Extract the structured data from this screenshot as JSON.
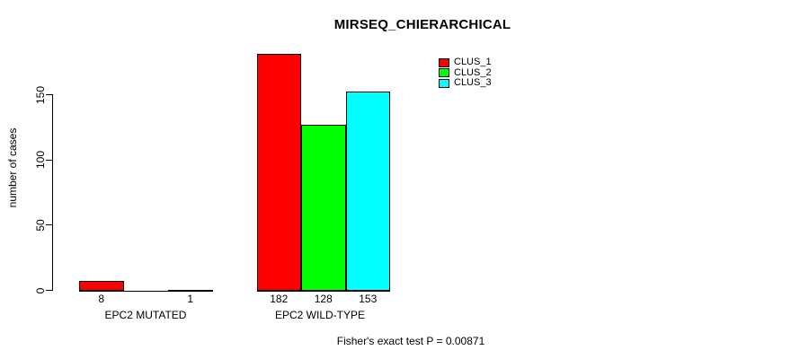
{
  "chart_data": {
    "type": "bar",
    "title": "MIRSEQ_CHIERARCHICAL",
    "xlabel": "",
    "ylabel": "number of cases",
    "categories": [
      "EPC2 MUTATED",
      "EPC2 WILD-TYPE"
    ],
    "series": [
      {
        "name": "CLUS_1",
        "color": "#ff0000",
        "values": [
          8,
          182
        ]
      },
      {
        "name": "CLUS_2",
        "color": "#00ff00",
        "values": [
          0,
          128
        ]
      },
      {
        "name": "CLUS_3",
        "color": "#00ffff",
        "values": [
          1,
          153
        ]
      }
    ],
    "bar_value_labels": [
      [
        "8",
        "",
        "1"
      ],
      [
        "182",
        "128",
        "153"
      ]
    ],
    "yticks": [
      0,
      50,
      100,
      150
    ],
    "ylim": [
      0,
      150
    ],
    "grid": false,
    "legend_position": "top-right",
    "footnote": "Fisher's exact test P = 0.00871"
  }
}
